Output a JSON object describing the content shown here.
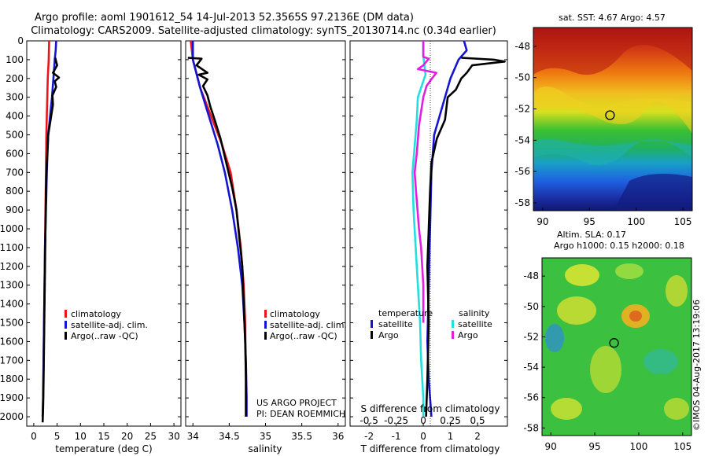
{
  "header": {
    "line1": "Argo profile: aoml 1901612_54 14-Jul-2013 52.3565S 97.2136E (DM data)",
    "line2": "Climatology: CARS2009. Satellite-adjusted climatology: synTS_20130714.nc (0.34d earlier)"
  },
  "colors": {
    "red": "#e8161b",
    "blue": "#1515d0",
    "black": "#000000",
    "cyan": "#22dede",
    "magenta": "#e020e0"
  },
  "depth_ticks": [
    0,
    100,
    200,
    300,
    400,
    500,
    600,
    700,
    800,
    900,
    1000,
    1100,
    1200,
    1300,
    1400,
    1500,
    1600,
    1700,
    1800,
    1900,
    2000
  ],
  "legend1": [
    "climatology",
    "satellite-adj. clim.",
    "Argo(..raw -QC)"
  ],
  "legend3": {
    "temperature": "temperature",
    "salinity": "salinity",
    "satellite": "satellite",
    "argo": "Argo"
  },
  "credit": {
    "line1": "US ARGO PROJECT",
    "line2": "PI: DEAN ROEMMICH"
  },
  "map_top": {
    "title": "sat. SST: 4.67  Argo: 4.57"
  },
  "map_bottom": {
    "title1": "Altim. SLA: 0.17",
    "title2": "Argo h1000: 0.15  h2000: 0.18"
  },
  "stamp": "©IMOS 04-Aug-2017 13:19:06",
  "chart_data": [
    {
      "type": "line",
      "xlabel": "temperature (deg C)",
      "ylabel": "",
      "xlim": [
        -1.5,
        31.5
      ],
      "ylim": [
        2050,
        0
      ],
      "xticks": [
        "0",
        "5",
        "10",
        "15",
        "20",
        "25",
        "30"
      ],
      "series": [
        {
          "name": "climatology",
          "color": "red",
          "points": [
            [
              3.3,
              0
            ],
            [
              3.2,
              100
            ],
            [
              3.0,
              200
            ],
            [
              2.9,
              300
            ],
            [
              2.8,
              400
            ],
            [
              2.7,
              500
            ],
            [
              2.6,
              700
            ],
            [
              2.5,
              900
            ],
            [
              2.4,
              1100
            ],
            [
              2.3,
              1300
            ],
            [
              2.2,
              1500
            ],
            [
              2.1,
              1700
            ],
            [
              2.0,
              1900
            ],
            [
              1.9,
              2000
            ]
          ]
        },
        {
          "name": "satellite-adj. clim.",
          "color": "blue",
          "points": [
            [
              4.8,
              0
            ],
            [
              4.7,
              50
            ],
            [
              4.5,
              100
            ],
            [
              4.2,
              200
            ],
            [
              3.9,
              300
            ],
            [
              3.5,
              400
            ],
            [
              3.1,
              500
            ],
            [
              2.8,
              700
            ],
            [
              2.6,
              900
            ],
            [
              2.4,
              1100
            ],
            [
              2.3,
              1300
            ],
            [
              2.2,
              1500
            ],
            [
              2.1,
              1700
            ],
            [
              2.0,
              1900
            ],
            [
              1.9,
              2000
            ]
          ]
        },
        {
          "name": "Argo(..raw -QC)",
          "color": "black",
          "points": [
            [
              4.6,
              90
            ],
            [
              5.0,
              130
            ],
            [
              4.1,
              170
            ],
            [
              5.4,
              195
            ],
            [
              4.5,
              215
            ],
            [
              4.8,
              245
            ],
            [
              4.0,
              290
            ],
            [
              4.1,
              340
            ],
            [
              3.6,
              420
            ],
            [
              3.1,
              500
            ],
            [
              2.8,
              650
            ],
            [
              2.6,
              800
            ],
            [
              2.5,
              1000
            ],
            [
              2.4,
              1200
            ],
            [
              2.3,
              1400
            ],
            [
              2.2,
              1600
            ],
            [
              2.1,
              1800
            ],
            [
              2.0,
              1950
            ],
            [
              1.9,
              2030
            ]
          ]
        }
      ]
    },
    {
      "type": "line",
      "xlabel": "salinity",
      "ylabel": "",
      "xlim": [
        33.9,
        36.1
      ],
      "ylim": [
        2050,
        0
      ],
      "xticks": [
        "34",
        "34.5",
        "35",
        "35.5",
        "36"
      ],
      "series": [
        {
          "name": "climatology",
          "color": "red",
          "points": [
            [
              33.97,
              0
            ],
            [
              34.0,
              100
            ],
            [
              34.1,
              250
            ],
            [
              34.25,
              400
            ],
            [
              34.4,
              550
            ],
            [
              34.52,
              700
            ],
            [
              34.6,
              900
            ],
            [
              34.66,
              1100
            ],
            [
              34.7,
              1300
            ],
            [
              34.72,
              1500
            ],
            [
              34.73,
              1800
            ],
            [
              34.73,
              2000
            ]
          ]
        },
        {
          "name": "satellite-adj. clim.",
          "color": "blue",
          "points": [
            [
              34.0,
              0
            ],
            [
              34.0,
              100
            ],
            [
              34.1,
              250
            ],
            [
              34.22,
              400
            ],
            [
              34.34,
              550
            ],
            [
              34.44,
              700
            ],
            [
              34.54,
              900
            ],
            [
              34.62,
              1100
            ],
            [
              34.68,
              1300
            ],
            [
              34.71,
              1500
            ],
            [
              34.73,
              1700
            ],
            [
              34.74,
              1900
            ],
            [
              34.74,
              2000
            ]
          ]
        },
        {
          "name": "Argo(..raw -QC)",
          "color": "black",
          "points": [
            [
              33.93,
              90
            ],
            [
              34.12,
              95
            ],
            [
              34.05,
              130
            ],
            [
              34.2,
              170
            ],
            [
              34.08,
              180
            ],
            [
              34.2,
              205
            ],
            [
              34.14,
              240
            ],
            [
              34.2,
              290
            ],
            [
              34.24,
              350
            ],
            [
              34.3,
              420
            ],
            [
              34.38,
              520
            ],
            [
              34.46,
              650
            ],
            [
              34.54,
              780
            ],
            [
              34.6,
              900
            ],
            [
              34.64,
              1050
            ],
            [
              34.68,
              1200
            ],
            [
              34.7,
              1400
            ],
            [
              34.72,
              1600
            ],
            [
              34.73,
              1800
            ],
            [
              34.73,
              2000
            ]
          ]
        }
      ]
    },
    {
      "type": "line",
      "xlabel": "T difference from climatology",
      "ylabel": "",
      "xlim": [
        -2.7,
        3.1
      ],
      "ylim": [
        2050,
        0
      ],
      "xticks": [
        "-2",
        "-1",
        "0",
        "1",
        "2"
      ],
      "top_axis": {
        "label": "S difference from climatology",
        "xlim": [
          -0.675,
          0.775
        ],
        "ticks": [
          "-0.5",
          "-0.25",
          "0",
          "0.25",
          "0.5"
        ]
      },
      "series": [
        {
          "name": "temperature satellite",
          "color": "blue",
          "points": [
            [
              1.5,
              0
            ],
            [
              1.6,
              50
            ],
            [
              1.3,
              100
            ],
            [
              1.0,
              200
            ],
            [
              0.8,
              300
            ],
            [
              0.6,
              400
            ],
            [
              0.4,
              500
            ],
            [
              0.3,
              700
            ],
            [
              0.25,
              1000
            ],
            [
              0.2,
              1300
            ],
            [
              0.15,
              1600
            ],
            [
              0.2,
              1800
            ],
            [
              0.25,
              1900
            ],
            [
              0.3,
              2000
            ]
          ]
        },
        {
          "name": "temperature Argo",
          "color": "black",
          "points": [
            [
              1.4,
              90
            ],
            [
              2.6,
              100
            ],
            [
              3.0,
              110
            ],
            [
              1.8,
              130
            ],
            [
              1.6,
              170
            ],
            [
              1.4,
              200
            ],
            [
              1.2,
              260
            ],
            [
              0.9,
              300
            ],
            [
              0.8,
              420
            ],
            [
              0.5,
              520
            ],
            [
              0.3,
              650
            ],
            [
              0.25,
              800
            ],
            [
              0.2,
              1000
            ],
            [
              0.15,
              1200
            ],
            [
              0.2,
              1500
            ],
            [
              0.15,
              1800
            ],
            [
              0.1,
              2000
            ]
          ]
        },
        {
          "name": "salinity satellite",
          "color": "cyan",
          "axis": "top",
          "points": [
            [
              0.0,
              0
            ],
            [
              0.0,
              80
            ],
            [
              0.02,
              180
            ],
            [
              -0.05,
              300
            ],
            [
              -0.06,
              420
            ],
            [
              -0.08,
              560
            ],
            [
              -0.1,
              700
            ],
            [
              -0.09,
              900
            ],
            [
              -0.07,
              1100
            ],
            [
              -0.05,
              1300
            ],
            [
              -0.03,
              1500
            ],
            [
              -0.02,
              1700
            ],
            [
              0.0,
              1900
            ],
            [
              0.0,
              2000
            ]
          ]
        },
        {
          "name": "salinity Argo",
          "color": "magenta",
          "axis": "top",
          "points": [
            [
              0.0,
              0
            ],
            [
              0.0,
              85
            ],
            [
              0.05,
              95
            ],
            [
              0.0,
              130
            ],
            [
              -0.05,
              150
            ],
            [
              0.12,
              170
            ],
            [
              0.08,
              200
            ],
            [
              0.03,
              240
            ],
            [
              0.0,
              300
            ],
            [
              -0.04,
              450
            ],
            [
              -0.06,
              600
            ],
            [
              -0.08,
              700
            ],
            [
              -0.06,
              850
            ],
            [
              -0.04,
              1000
            ],
            [
              -0.02,
              1100
            ],
            [
              0.0,
              1300
            ],
            [
              0.0,
              1500
            ]
          ]
        }
      ]
    },
    {
      "type": "heatmap",
      "title": "sat. SST: 4.67  Argo: 4.57",
      "xticks": [
        "90",
        "95",
        "100",
        "105"
      ],
      "yticks": [
        "-48",
        "-50",
        "-52",
        "-54",
        "-56",
        "-58"
      ],
      "xlim": [
        89,
        106
      ],
      "ylim": [
        -58.5,
        -46.8
      ],
      "marker": [
        97.2,
        -52.4
      ]
    },
    {
      "type": "heatmap",
      "title": "Altim. SLA: 0.17  Argo h1000: 0.15  h2000: 0.18",
      "xticks": [
        "90",
        "95",
        "100",
        "105"
      ],
      "yticks": [
        "-48",
        "-50",
        "-52",
        "-54",
        "-56",
        "-58"
      ],
      "xlim": [
        89,
        106
      ],
      "ylim": [
        -58.5,
        -46.8
      ],
      "marker": [
        97.2,
        -52.4
      ]
    }
  ]
}
